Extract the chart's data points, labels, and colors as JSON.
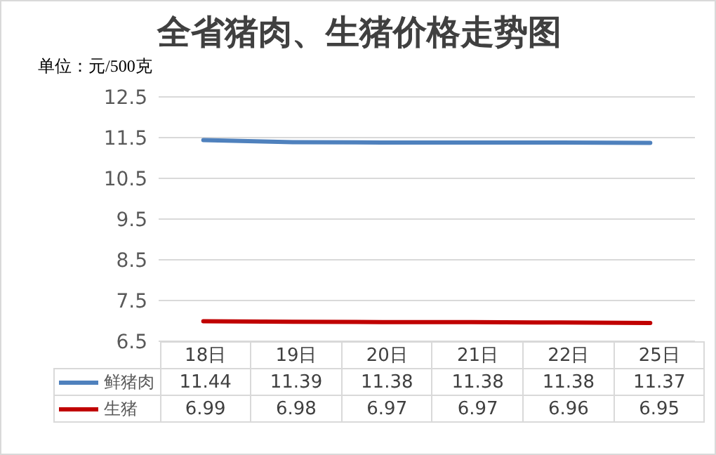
{
  "chart_data": {
    "type": "line",
    "title": "全省猪肉、生猪价格走势图",
    "annotations": [
      "单位：元/500克"
    ],
    "categories": [
      "18日",
      "19日",
      "20日",
      "21日",
      "22日",
      "25日"
    ],
    "series": [
      {
        "name": "鲜猪肉",
        "color": "#4f81bd",
        "values": [
          11.44,
          11.39,
          11.38,
          11.38,
          11.38,
          11.37
        ]
      },
      {
        "name": "生猪",
        "color": "#c00000",
        "values": [
          6.99,
          6.98,
          6.97,
          6.97,
          6.96,
          6.95
        ]
      }
    ],
    "ylim": [
      6.5,
      12.5
    ],
    "yticks": [
      6.5,
      7.5,
      8.5,
      9.5,
      10.5,
      11.5,
      12.5
    ],
    "grid": "y",
    "legend": "bottom left",
    "data_labels": true,
    "marker": "none",
    "line_style": "solid"
  }
}
